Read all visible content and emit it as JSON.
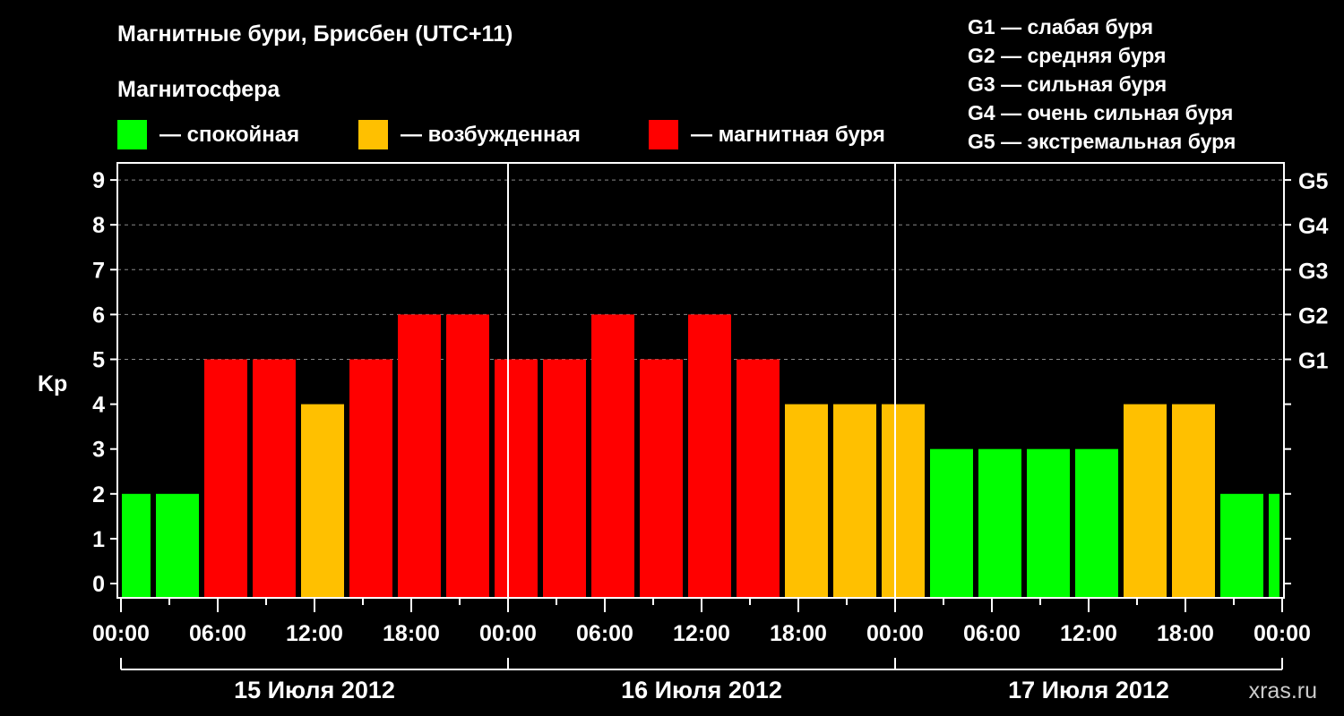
{
  "title": "Магнитные бури, Брисбен (UTC+11)",
  "legend_title": "Магнитосфера",
  "legend": [
    {
      "label": "— спокойная",
      "color": "#00ff00"
    },
    {
      "label": "— возбужденная",
      "color": "#ffc000"
    },
    {
      "label": "— магнитная буря",
      "color": "#ff0000"
    }
  ],
  "g_scale": [
    "G1 — слабая буря",
    "G2 — средняя буря",
    "G3 — сильная буря",
    "G4 — очень сильная буря",
    "G5 — экстремальная буря"
  ],
  "watermark": "xras.ru",
  "chart_data": {
    "type": "bar",
    "title": "Магнитные бури, Брисбен (UTC+11)",
    "ylabel": "Kp",
    "ylim": [
      0,
      9
    ],
    "yticks": [
      "0",
      "1",
      "2",
      "3",
      "4",
      "5",
      "6",
      "7",
      "8",
      "9"
    ],
    "right_ticks": [
      {
        "value": 5,
        "label": "G1"
      },
      {
        "value": 6,
        "label": "G2"
      },
      {
        "value": 7,
        "label": "G3"
      },
      {
        "value": 8,
        "label": "G4"
      },
      {
        "value": 9,
        "label": "G5"
      }
    ],
    "xlim_hours": [
      0,
      72
    ],
    "xticks": [
      "00:00",
      "06:00",
      "12:00",
      "18:00",
      "00:00",
      "06:00",
      "12:00",
      "18:00",
      "00:00",
      "06:00",
      "12:00",
      "18:00",
      "00:00"
    ],
    "days": [
      "15 Июля 2012",
      "16 Июля 2012",
      "17 Июля 2012"
    ],
    "grid": "dashed horizontal at 5–9",
    "bars": [
      {
        "start": 0,
        "end": 2,
        "kp": 2
      },
      {
        "start": 2,
        "end": 5,
        "kp": 2
      },
      {
        "start": 5,
        "end": 8,
        "kp": 5
      },
      {
        "start": 8,
        "end": 11,
        "kp": 5
      },
      {
        "start": 11,
        "end": 14,
        "kp": 4
      },
      {
        "start": 14,
        "end": 17,
        "kp": 5
      },
      {
        "start": 17,
        "end": 20,
        "kp": 6
      },
      {
        "start": 20,
        "end": 23,
        "kp": 6
      },
      {
        "start": 23,
        "end": 26,
        "kp": 5
      },
      {
        "start": 26,
        "end": 29,
        "kp": 5
      },
      {
        "start": 29,
        "end": 32,
        "kp": 6
      },
      {
        "start": 32,
        "end": 35,
        "kp": 5
      },
      {
        "start": 35,
        "end": 38,
        "kp": 6
      },
      {
        "start": 38,
        "end": 41,
        "kp": 5
      },
      {
        "start": 41,
        "end": 44,
        "kp": 4
      },
      {
        "start": 44,
        "end": 47,
        "kp": 4
      },
      {
        "start": 47,
        "end": 50,
        "kp": 4
      },
      {
        "start": 50,
        "end": 53,
        "kp": 3
      },
      {
        "start": 53,
        "end": 56,
        "kp": 3
      },
      {
        "start": 56,
        "end": 59,
        "kp": 3
      },
      {
        "start": 59,
        "end": 62,
        "kp": 3
      },
      {
        "start": 62,
        "end": 65,
        "kp": 4
      },
      {
        "start": 65,
        "end": 68,
        "kp": 4
      },
      {
        "start": 68,
        "end": 71,
        "kp": 2
      },
      {
        "start": 71,
        "end": 72,
        "kp": 2
      }
    ],
    "colors": {
      "quiet": "#00ff00",
      "active": "#ffc000",
      "storm": "#ff0000"
    }
  }
}
